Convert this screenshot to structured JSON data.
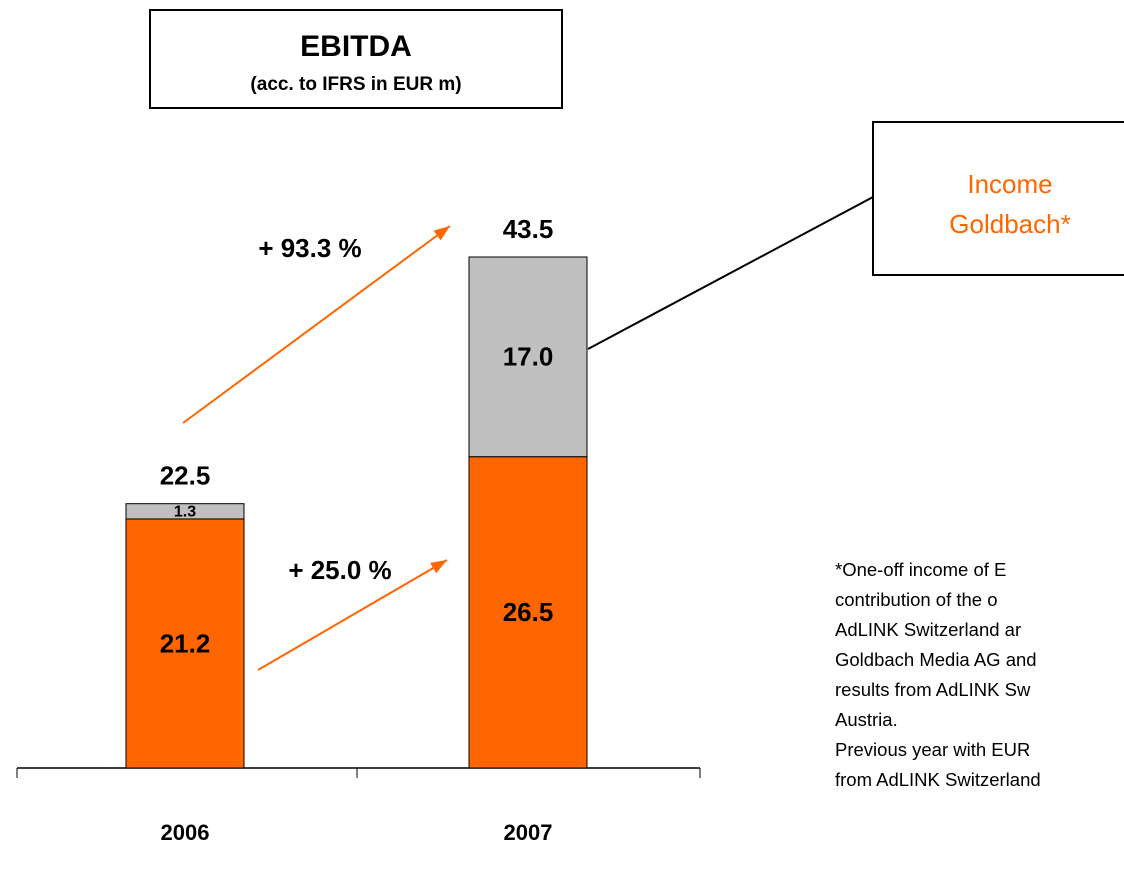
{
  "chart_data": {
    "type": "stacked_bar",
    "title": "EBITDA",
    "subtitle": "(acc. to IFRS in EUR m)",
    "categories": [
      "2006",
      "2007"
    ],
    "series": [
      {
        "color": "#ff6600",
        "values": [
          21.2,
          26.5
        ]
      },
      {
        "color": "#c0c0c0",
        "values": [
          1.3,
          17.0
        ],
        "value_labels": [
          "1.3",
          "17.0"
        ]
      }
    ],
    "totals": [
      22.5,
      43.5
    ],
    "growth_labels": [
      "+ 93.3 %",
      "+ 25.0 %"
    ],
    "arrow_color": "#ff6600",
    "callout": [
      "Income",
      "Goldbach*"
    ],
    "callout_color": "#ff6600",
    "footnote": [
      "*One-off income of E",
      "contribution of the o",
      "AdLINK Switzerland ar",
      "Goldbach Media AG and",
      "results from AdLINK Sw",
      "Austria.",
      "Previous year with EUR",
      "from AdLINK Switzerland"
    ]
  }
}
